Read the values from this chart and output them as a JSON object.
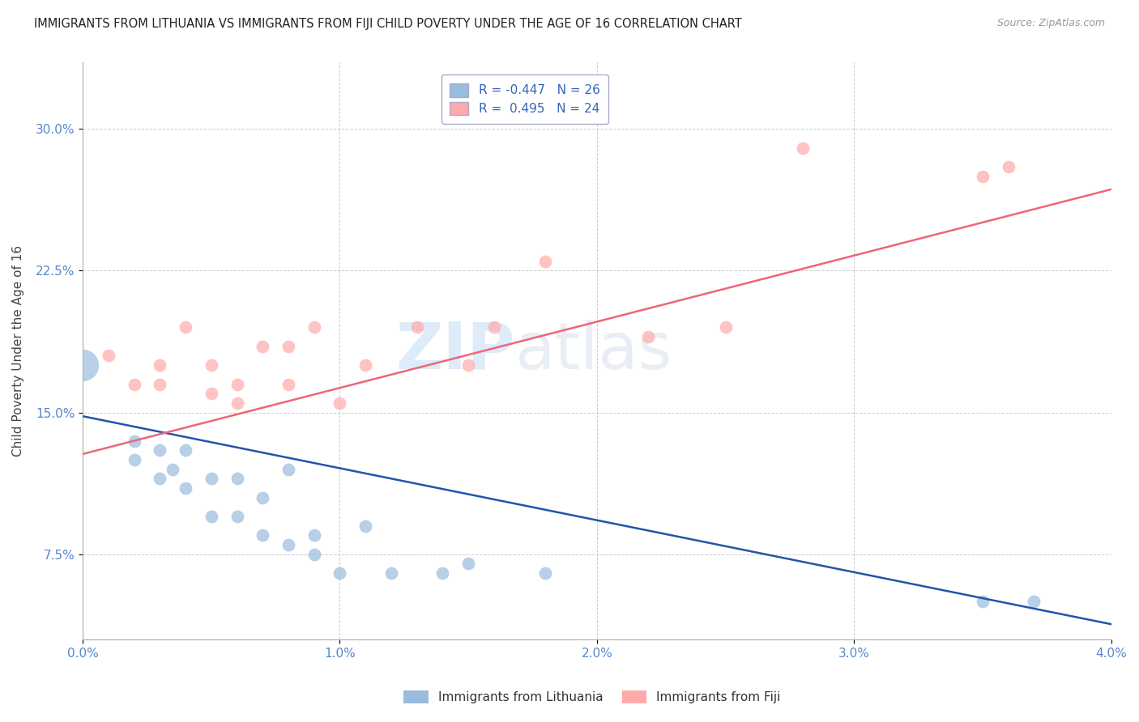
{
  "title": "IMMIGRANTS FROM LITHUANIA VS IMMIGRANTS FROM FIJI CHILD POVERTY UNDER THE AGE OF 16 CORRELATION CHART",
  "source": "Source: ZipAtlas.com",
  "ylabel": "Child Poverty Under the Age of 16",
  "legend_lithuania": "Immigrants from Lithuania",
  "legend_fiji": "Immigrants from Fiji",
  "r_lithuania": -0.447,
  "n_lithuania": 26,
  "r_fiji": 0.495,
  "n_fiji": 24,
  "color_lithuania": "#99BBDD",
  "color_fiji": "#FFAAAA",
  "line_color_lithuania": "#2255AA",
  "line_color_fiji": "#EE6677",
  "xlim": [
    0.0,
    0.04
  ],
  "ylim": [
    0.03,
    0.335
  ],
  "xticks": [
    0.0,
    0.01,
    0.02,
    0.03,
    0.04
  ],
  "xtick_labels": [
    "0.0%",
    "1.0%",
    "2.0%",
    "3.0%",
    "4.0%"
  ],
  "yticks": [
    0.075,
    0.15,
    0.225,
    0.3
  ],
  "ytick_labels": [
    "7.5%",
    "15.0%",
    "22.5%",
    "30.0%"
  ],
  "watermark_zip": "ZIP",
  "watermark_atlas": "atlas",
  "lithuania_x": [
    0.0,
    0.002,
    0.002,
    0.003,
    0.003,
    0.0035,
    0.004,
    0.004,
    0.005,
    0.005,
    0.006,
    0.006,
    0.007,
    0.007,
    0.008,
    0.008,
    0.009,
    0.009,
    0.01,
    0.011,
    0.012,
    0.014,
    0.015,
    0.018,
    0.035,
    0.037
  ],
  "lithuania_y": [
    0.175,
    0.135,
    0.125,
    0.13,
    0.115,
    0.12,
    0.13,
    0.11,
    0.115,
    0.095,
    0.115,
    0.095,
    0.105,
    0.085,
    0.12,
    0.08,
    0.085,
    0.075,
    0.065,
    0.09,
    0.065,
    0.065,
    0.07,
    0.065,
    0.05,
    0.05
  ],
  "lithuania_sizes": [
    800,
    120,
    120,
    120,
    120,
    120,
    120,
    120,
    120,
    120,
    120,
    120,
    120,
    120,
    120,
    120,
    120,
    120,
    120,
    120,
    120,
    120,
    120,
    120,
    120,
    120
  ],
  "fiji_x": [
    0.001,
    0.002,
    0.003,
    0.003,
    0.004,
    0.005,
    0.005,
    0.006,
    0.006,
    0.007,
    0.008,
    0.008,
    0.009,
    0.01,
    0.011,
    0.013,
    0.015,
    0.016,
    0.018,
    0.022,
    0.025,
    0.028,
    0.035,
    0.036
  ],
  "fiji_y": [
    0.18,
    0.165,
    0.165,
    0.175,
    0.195,
    0.16,
    0.175,
    0.165,
    0.155,
    0.185,
    0.165,
    0.185,
    0.195,
    0.155,
    0.175,
    0.195,
    0.175,
    0.195,
    0.23,
    0.19,
    0.195,
    0.29,
    0.275,
    0.28
  ],
  "trendline_lith_x0": 0.0,
  "trendline_lith_y0": 0.148,
  "trendline_lith_x1": 0.04,
  "trendline_lith_y1": 0.038,
  "trendline_fiji_x0": 0.0,
  "trendline_fiji_y0": 0.128,
  "trendline_fiji_x1": 0.04,
  "trendline_fiji_y1": 0.268
}
